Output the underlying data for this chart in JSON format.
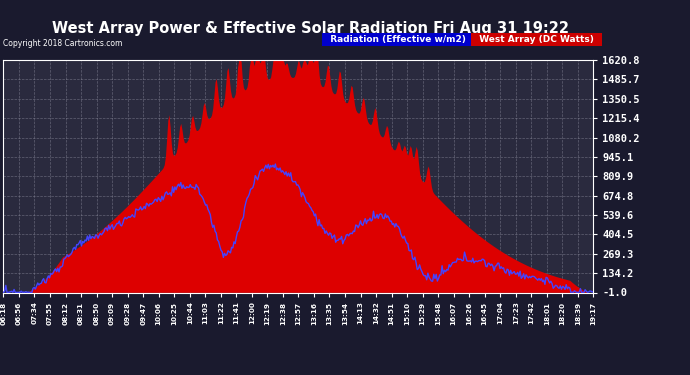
{
  "title": "West Array Power & Effective Solar Radiation Fri Aug 31 19:22",
  "copyright": "Copyright 2018 Cartronics.com",
  "legend_labels": [
    "Radiation (Effective w/m2)",
    "West Array (DC Watts)"
  ],
  "legend_bg_colors": [
    "#0000cc",
    "#cc0000"
  ],
  "yticks": [
    -1.0,
    134.2,
    269.3,
    404.5,
    539.6,
    674.8,
    809.9,
    945.1,
    1080.2,
    1215.4,
    1350.5,
    1485.7,
    1620.8
  ],
  "ymin": -1.0,
  "ymax": 1620.8,
  "bg_color": "#1a1a2e",
  "plot_bg_color": "#2a2a3e",
  "grid_color": "#666688",
  "title_color": "white",
  "tick_color": "white",
  "red_color": "#dd0000",
  "blue_color": "#4444ff",
  "num_points": 500,
  "xtick_labels": [
    "06:18",
    "06:56",
    "07:34",
    "07:55",
    "08:12",
    "08:31",
    "08:50",
    "09:09",
    "09:28",
    "09:47",
    "10:06",
    "10:25",
    "10:44",
    "11:03",
    "11:22",
    "11:41",
    "12:00",
    "12:19",
    "12:38",
    "12:57",
    "13:16",
    "13:35",
    "13:54",
    "14:13",
    "14:32",
    "14:51",
    "15:10",
    "15:29",
    "15:48",
    "16:07",
    "16:26",
    "16:45",
    "17:04",
    "17:23",
    "17:42",
    "18:01",
    "18:20",
    "18:39",
    "19:17"
  ]
}
